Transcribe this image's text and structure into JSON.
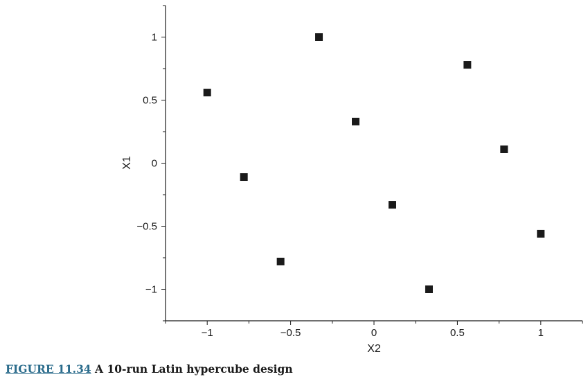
{
  "caption": {
    "figure_number": "FIGURE 11.34",
    "text": "A 10-run Latin hypercube design"
  },
  "chart_data": {
    "type": "scatter",
    "title": "",
    "xlabel": "X2",
    "ylabel": "X1",
    "xlim": [
      -1.25,
      1.25
    ],
    "ylim": [
      -1.25,
      1.25
    ],
    "x_ticks": [
      -1,
      -0.5,
      0,
      0.5,
      1
    ],
    "x_tick_labels": [
      "−1",
      "−0.5",
      "0",
      "0.5",
      "1"
    ],
    "y_ticks": [
      1,
      0.5,
      0,
      -0.5,
      -1
    ],
    "y_tick_labels": [
      "1",
      "0.5",
      "0",
      "−0.5",
      "−1"
    ],
    "grid": false,
    "legend": false,
    "marker": "square",
    "marker_color": "#1a1a1a",
    "points": [
      {
        "x": -1.0,
        "y": 0.56
      },
      {
        "x": -0.78,
        "y": -0.11
      },
      {
        "x": -0.56,
        "y": -0.78
      },
      {
        "x": -0.33,
        "y": 1.0
      },
      {
        "x": -0.11,
        "y": 0.33
      },
      {
        "x": 0.11,
        "y": -0.33
      },
      {
        "x": 0.33,
        "y": -1.0
      },
      {
        "x": 0.56,
        "y": 0.78
      },
      {
        "x": 0.78,
        "y": 0.11
      },
      {
        "x": 1.0,
        "y": -0.56
      }
    ]
  }
}
